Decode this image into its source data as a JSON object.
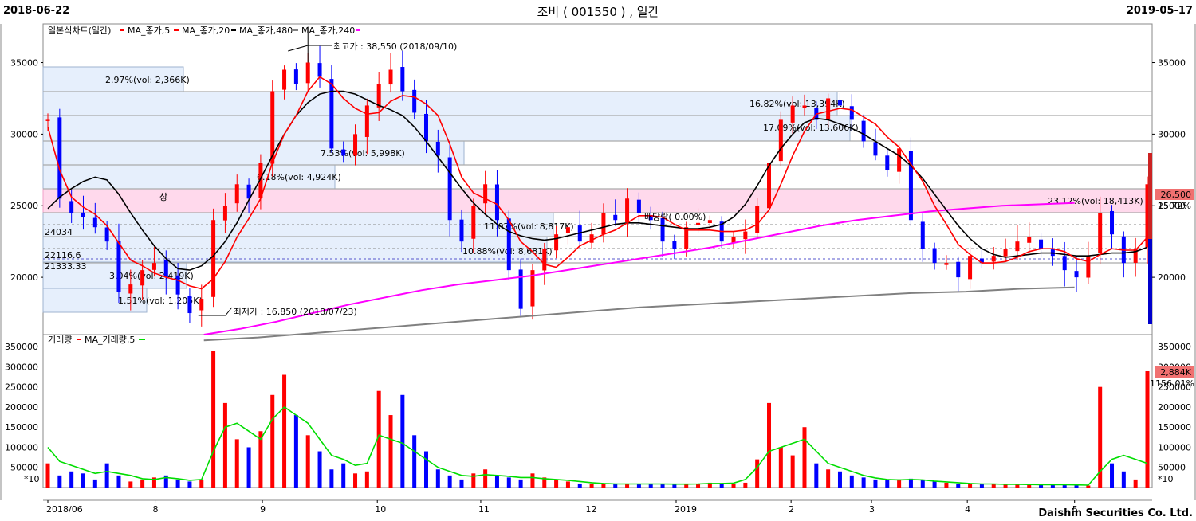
{
  "header": {
    "start_date": "2018-06-22",
    "end_date": "2019-05-17",
    "title": "조비 ( 001550 ) , 일간"
  },
  "footer": "Daishin Securities Co. Ltd.",
  "legend_price": {
    "chart": "일본식차트(일간)",
    "ma5": "MA_종가,5",
    "ma20": "MA_종가,20",
    "ma480": "MA_종가,480",
    "ma240": "MA_종가,240"
  },
  "legend_volume": {
    "vol": "거래량",
    "ma5": "MA_거래량,5"
  },
  "annotations": {
    "high": "최고가 : 38,550 (2018/09/10)",
    "low": "최저가 : 16,850 (2018/07/23)",
    "price_marker": "26,500",
    "price_pct": "15.72%",
    "vol_marker": "2,884K",
    "vol_pct": "1156.01%",
    "x10": "*10",
    "bp": "배당락( 0.00%)",
    "sang": "상",
    "l2403": "24034",
    "l2211": "22116.6",
    "l2133": "21333.33"
  },
  "zones": [
    {
      "label": "2.97%(vol: 2,366K)"
    },
    {
      "label": "6.18%(vol: 4,924K)"
    },
    {
      "label": "7.53%(vol: 5,998K)"
    },
    {
      "label": "3.04%(vol: 2,419K)"
    },
    {
      "label": "1.51%(vol: 1,205K)"
    },
    {
      "label": "16.82%(vol: 13,394K)"
    },
    {
      "label": "17.09%(vol: 13,606K)"
    },
    {
      "label": "23.12%(vol: 18,413K)"
    },
    {
      "label": "11.07%(vol: 8,817K)"
    },
    {
      "label": "10.88%(vol: 8,681K)"
    }
  ],
  "colors": {
    "up": "#ff0000",
    "down": "#0000ff",
    "ma5": "#ff0000",
    "ma20": "#000000",
    "ma240": "#ff00ff",
    "ma480": "#808080",
    "vol_ma": "#00dd00",
    "zone_blue": "#e6effc",
    "zone_pink": "#ffd9ec"
  },
  "chart_data": [
    {
      "type": "candlestick",
      "y_ticks": [
        "35000",
        "30000",
        "25000",
        "20000"
      ],
      "ylim": [
        16000,
        37700
      ],
      "x_ticks": [
        "2018/06",
        "8",
        "9",
        "10",
        "11",
        "12",
        "2019",
        "2",
        "3",
        "4",
        "5"
      ],
      "x_tick_days": [
        0,
        28,
        56,
        86,
        113,
        141,
        164,
        194,
        215,
        240,
        268
      ],
      "days": 287,
      "series": [
        {
          "name": "일본식차트(일간)",
          "values": [
            31000,
            25500,
            24500,
            24200,
            23500,
            22500,
            19000,
            19500,
            20500,
            21000,
            20000,
            18800,
            17500,
            18500,
            24000,
            25000,
            26500,
            25500,
            28000,
            33000,
            34500,
            33500,
            35000,
            34000,
            29000,
            28500,
            30000,
            32000,
            33500,
            34500,
            33000,
            31500,
            29500,
            28500,
            24000,
            22500,
            25000,
            26500,
            24000,
            20500,
            17800,
            20500,
            22000,
            23000,
            23500,
            22500,
            23000,
            24500,
            24000,
            25500,
            24500,
            24000,
            22500,
            22000,
            23500,
            23800,
            24000,
            22500,
            22800,
            23200,
            25000,
            28000,
            31000,
            32000,
            32000,
            31000,
            32500,
            32000,
            31000,
            29500,
            28500,
            27500,
            29000,
            24000,
            22000,
            21000,
            21000,
            20000,
            21500,
            21000,
            21500,
            22000,
            22500,
            22800,
            22000,
            21500,
            20500,
            20000,
            21500,
            24500,
            23000,
            21000,
            22000,
            26500
          ]
        },
        {
          "name": "MA_종가,5",
          "values": [
            30500,
            27500,
            25600,
            24900,
            24400,
            23600,
            22400,
            21200,
            20800,
            20300,
            20000,
            19800,
            19400,
            19200,
            19900,
            21100,
            22800,
            24100,
            25500,
            28000,
            30000,
            31300,
            33000,
            34000,
            33500,
            32500,
            31800,
            31400,
            31500,
            32300,
            32700,
            32600,
            32100,
            31300,
            29300,
            27000,
            25900,
            25500,
            25100,
            24000,
            22500,
            21800,
            20900,
            20700,
            21400,
            22200,
            22600,
            23000,
            23300,
            23800,
            24300,
            24300,
            24200,
            23700,
            23300,
            23300,
            23300,
            23200,
            23200,
            23300,
            23700,
            24700,
            26500,
            28500,
            30200,
            31400,
            31600,
            31800,
            31700,
            31200,
            30700,
            29800,
            29100,
            27900,
            26700,
            25000,
            23700,
            22300,
            21600,
            21000,
            21000,
            21100,
            21400,
            21800,
            22000,
            22000,
            21800,
            21300,
            21100,
            21600,
            22000,
            21900,
            21900,
            22800
          ]
        },
        {
          "name": "MA_종가,20",
          "values": [
            24800,
            25600,
            26200,
            26700,
            27000,
            26800,
            25800,
            24500,
            23300,
            22200,
            21300,
            20600,
            20500,
            20800,
            21500,
            22500,
            23800,
            25400,
            26900,
            28500,
            30000,
            31300,
            32200,
            32800,
            33000,
            33000,
            32800,
            32400,
            32000,
            31700,
            31300,
            30500,
            29500,
            28400,
            27300,
            26200,
            25200,
            24400,
            23700,
            23200,
            22900,
            22700,
            22600,
            22700,
            22900,
            23100,
            23300,
            23500,
            23700,
            23800,
            23800,
            23700,
            23600,
            23500,
            23400,
            23400,
            23500,
            23700,
            24200,
            25100,
            26400,
            27800,
            29000,
            30000,
            30800,
            31100,
            31000,
            30700,
            30400,
            30000,
            29500,
            29000,
            28500,
            27800,
            26900,
            25800,
            24700,
            23600,
            22700,
            22000,
            21600,
            21400,
            21500,
            21600,
            21700,
            21700,
            21600,
            21500,
            21500,
            21600,
            21700,
            21700,
            21800,
            22100
          ]
        },
        {
          "name": "MA_종가,240",
          "values": [
            16000,
            16400,
            16900,
            17500,
            18100,
            18600,
            19100,
            19500,
            19800,
            20100,
            20500,
            20900,
            21300,
            21700,
            22100,
            22600,
            23100,
            23600,
            24000,
            24300,
            24600,
            24800,
            25000,
            25100,
            25200
          ]
        },
        {
          "name": "MA_종가,480",
          "values": [
            15600,
            15800,
            16100,
            16400,
            16700,
            17000,
            17300,
            17600,
            17900,
            18100,
            18300,
            18500,
            18700,
            18900,
            19000,
            19200,
            19300
          ]
        }
      ]
    },
    {
      "type": "bar",
      "y_ticks": [
        "350000",
        "300000",
        "250000",
        "200000",
        "150000",
        "100000",
        "50000"
      ],
      "ylim": [
        0,
        380000
      ],
      "series": [
        {
          "name": "거래량",
          "values": [
            60000,
            30000,
            40000,
            35000,
            20000,
            60000,
            30000,
            15000,
            20000,
            25000,
            30000,
            20000,
            15000,
            20000,
            340000,
            210000,
            120000,
            100000,
            140000,
            230000,
            280000,
            180000,
            130000,
            90000,
            45000,
            60000,
            35000,
            40000,
            240000,
            180000,
            230000,
            130000,
            90000,
            45000,
            30000,
            20000,
            35000,
            45000,
            30000,
            25000,
            20000,
            35000,
            25000,
            20000,
            15000,
            10000,
            10000,
            8000,
            10000,
            8000,
            9000,
            10000,
            9000,
            7000,
            8000,
            9000,
            12000,
            8000,
            9000,
            12000,
            70000,
            210000,
            100000,
            80000,
            150000,
            60000,
            45000,
            40000,
            30000,
            25000,
            20000,
            18000,
            20000,
            22000,
            18000,
            15000,
            12000,
            10000,
            9000,
            8000,
            9000,
            8000,
            7000,
            8000,
            6000,
            7000,
            8000,
            6000,
            5000,
            250000,
            60000,
            40000,
            20000,
            289000
          ]
        },
        {
          "name": "MA_거래량,5",
          "values": [
            100000,
            65000,
            55000,
            45000,
            35000,
            40000,
            35000,
            30000,
            22000,
            20000,
            25000,
            22000,
            18000,
            20000,
            90000,
            150000,
            160000,
            140000,
            120000,
            170000,
            200000,
            180000,
            160000,
            120000,
            80000,
            70000,
            55000,
            60000,
            130000,
            120000,
            110000,
            90000,
            70000,
            50000,
            40000,
            30000,
            28000,
            32000,
            30000,
            28000,
            25000,
            25000,
            22000,
            20000,
            18000,
            15000,
            12000,
            10000,
            9000,
            9000,
            9000,
            9000,
            9000,
            8500,
            8500,
            9000,
            10000,
            10000,
            11000,
            20000,
            50000,
            90000,
            100000,
            110000,
            120000,
            90000,
            60000,
            50000,
            40000,
            30000,
            24000,
            20000,
            19000,
            20000,
            19000,
            16000,
            14000,
            12000,
            10000,
            9000,
            9000,
            8000,
            8000,
            7500,
            7000,
            7000,
            7000,
            6500,
            6000,
            40000,
            70000,
            80000,
            70000,
            60000
          ]
        }
      ]
    }
  ]
}
